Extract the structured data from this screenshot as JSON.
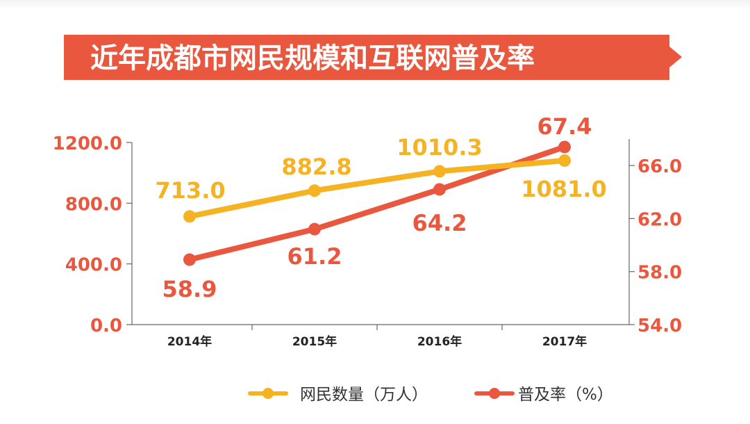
{
  "banner": {
    "title": "近年成都市网民规模和互联网普及率",
    "color": "#e8573e"
  },
  "chart_data": {
    "type": "line",
    "title": "近年成都市网民规模和互联网普及率",
    "categories": [
      "2014年",
      "2015年",
      "2016年",
      "2017年"
    ],
    "series": [
      {
        "name": "网民数量（万人）",
        "axis": "left",
        "color": "#f5b324",
        "values": [
          713.0,
          882.8,
          1010.3,
          1081.0
        ],
        "labels": [
          "713.0",
          "882.8",
          "1010.3",
          "1081.0"
        ]
      },
      {
        "name": "普及率（%）",
        "axis": "right",
        "color": "#e8573e",
        "values": [
          58.9,
          61.2,
          64.2,
          67.4
        ],
        "labels": [
          "58.9",
          "61.2",
          "64.2",
          "67.4"
        ]
      }
    ],
    "left_axis": {
      "range": [
        0,
        1200
      ],
      "ticks": [
        "0.0",
        "400.0",
        "800.0",
        "1200.0"
      ],
      "tick_values": [
        0,
        400,
        800,
        1200
      ],
      "color": "#e8573e"
    },
    "right_axis": {
      "range": [
        54,
        68
      ],
      "ticks": [
        "54.0",
        "58.0",
        "62.0",
        "66.0"
      ],
      "tick_values": [
        54,
        58,
        62,
        66
      ],
      "color": "#e8573e"
    },
    "legend_position": "bottom"
  }
}
